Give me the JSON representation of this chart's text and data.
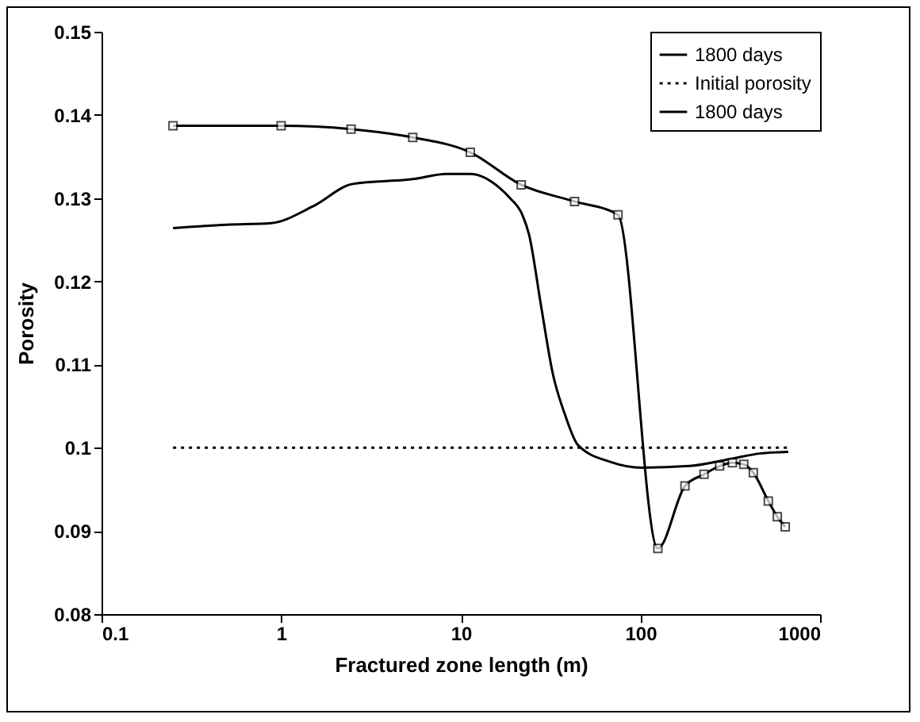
{
  "chart_data": {
    "type": "line",
    "xlabel": "Fractured zone length (m)",
    "ylabel": "Porosity",
    "log": "x",
    "grid": false,
    "legend": "top right",
    "xlim": [
      0.1,
      1000
    ],
    "xticks": [
      0.1,
      1,
      10,
      100,
      1000
    ],
    "ylim": [
      0.08,
      0.15
    ],
    "yticks": [
      0.08,
      0.09,
      0.1,
      0.11,
      0.12,
      0.13,
      0.14,
      0.15
    ],
    "series": [
      {
        "name": "1800 days",
        "color": "#000000",
        "marker": "none",
        "line_style": "solid",
        "x": [
          0.25,
          0.5,
          0.88,
          1.5,
          2.5,
          5.5,
          8.3,
          11.3,
          16.3,
          18.8,
          22,
          24,
          28,
          32.6,
          38,
          45,
          68,
          102,
          188,
          326,
          461,
          665
        ],
        "values": [
          0.1264,
          0.1268,
          0.127,
          0.129,
          0.1317,
          0.1323,
          0.1329,
          0.1329,
          0.1313,
          0.13,
          0.128,
          0.1256,
          0.117,
          0.1088,
          0.104,
          0.1003,
          0.0983,
          0.0976,
          0.0978,
          0.0987,
          0.0993,
          0.0995
        ]
      },
      {
        "name": "Initial porosity",
        "color": "#000000",
        "marker": "none",
        "line_style": "dotted",
        "x": [
          0.25,
          665
        ],
        "values": [
          0.1,
          0.1
        ]
      },
      {
        "name": "1800 days",
        "color": "#000000",
        "marker": "square",
        "line_style": "solid",
        "x": [
          0.25,
          1,
          2.45,
          5.4,
          11.3,
          21.7,
          43,
          75,
          125,
          177,
          226,
          276,
          325,
          376,
          425,
          515,
          578,
          640
        ],
        "values": [
          0.1387,
          0.1387,
          0.1383,
          0.1373,
          0.1355,
          0.1316,
          0.1296,
          0.128,
          0.0879,
          0.0954,
          0.0968,
          0.0978,
          0.0982,
          0.098,
          0.097,
          0.0936,
          0.0917,
          0.0905
        ]
      }
    ]
  }
}
